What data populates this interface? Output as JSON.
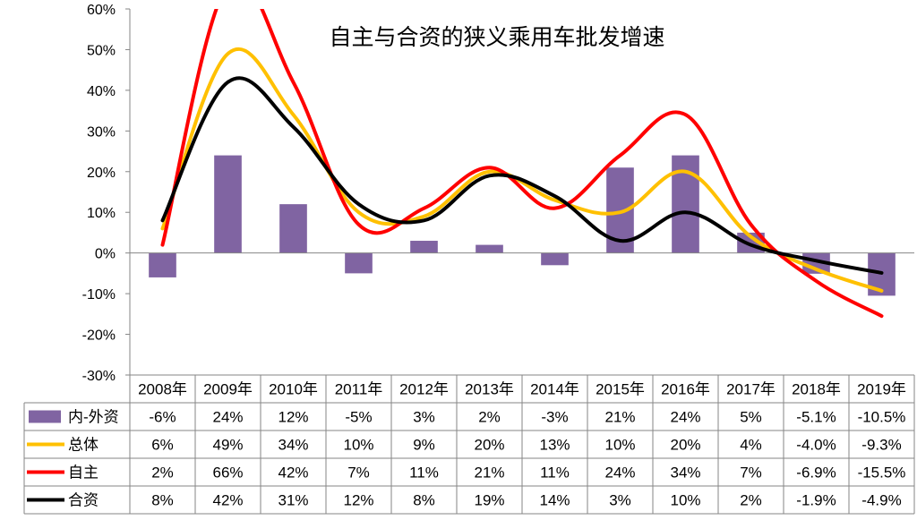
{
  "chart_data": {
    "type": "bar",
    "title": "自主与合资的狭义乘用车批发增速",
    "categories": [
      "2008年",
      "2009年",
      "2010年",
      "2011年",
      "2012年",
      "2013年",
      "2014年",
      "2015年",
      "2016年",
      "2017年",
      "2018年",
      "2019年"
    ],
    "ylim": [
      -30,
      60
    ],
    "yticks": [
      -30,
      -20,
      -10,
      0,
      10,
      20,
      30,
      40,
      50,
      60
    ],
    "ytick_labels": [
      "-30%",
      "-20%",
      "-10%",
      "0%",
      "10%",
      "20%",
      "30%",
      "40%",
      "50%",
      "60%"
    ],
    "grid": false,
    "legend": "data-table",
    "series": [
      {
        "name": "内-外资",
        "kind": "bar",
        "color": "#8064a2",
        "values": [
          -6,
          24,
          12,
          -5,
          3,
          2,
          -3,
          21,
          24,
          5,
          -5.1,
          -10.5
        ],
        "labels": [
          "-6%",
          "24%",
          "12%",
          "-5%",
          "3%",
          "2%",
          "-3%",
          "21%",
          "24%",
          "5%",
          "-5.1%",
          "-10.5%"
        ]
      },
      {
        "name": "总体",
        "kind": "line",
        "color": "#ffc000",
        "values": [
          6,
          49,
          34,
          10,
          9,
          20,
          13,
          10,
          20,
          4,
          -4.0,
          -9.3
        ],
        "labels": [
          "6%",
          "49%",
          "34%",
          "10%",
          "9%",
          "20%",
          "13%",
          "10%",
          "20%",
          "4%",
          "-4.0%",
          "-9.3%"
        ]
      },
      {
        "name": "自主",
        "kind": "line",
        "color": "#ff0000",
        "values": [
          2,
          66,
          42,
          7,
          11,
          21,
          11,
          24,
          34,
          7,
          -6.9,
          -15.5
        ],
        "labels": [
          "2%",
          "66%",
          "42%",
          "7%",
          "11%",
          "21%",
          "11%",
          "24%",
          "34%",
          "7%",
          "-6.9%",
          "-15.5%"
        ]
      },
      {
        "name": "合资",
        "kind": "line",
        "color": "#000000",
        "values": [
          8,
          42,
          31,
          12,
          8,
          19,
          14,
          3,
          10,
          2,
          -1.9,
          -4.9
        ],
        "labels": [
          "8%",
          "42%",
          "31%",
          "12%",
          "8%",
          "19%",
          "14%",
          "3%",
          "10%",
          "2%",
          "-1.9%",
          "-4.9%"
        ]
      }
    ]
  }
}
